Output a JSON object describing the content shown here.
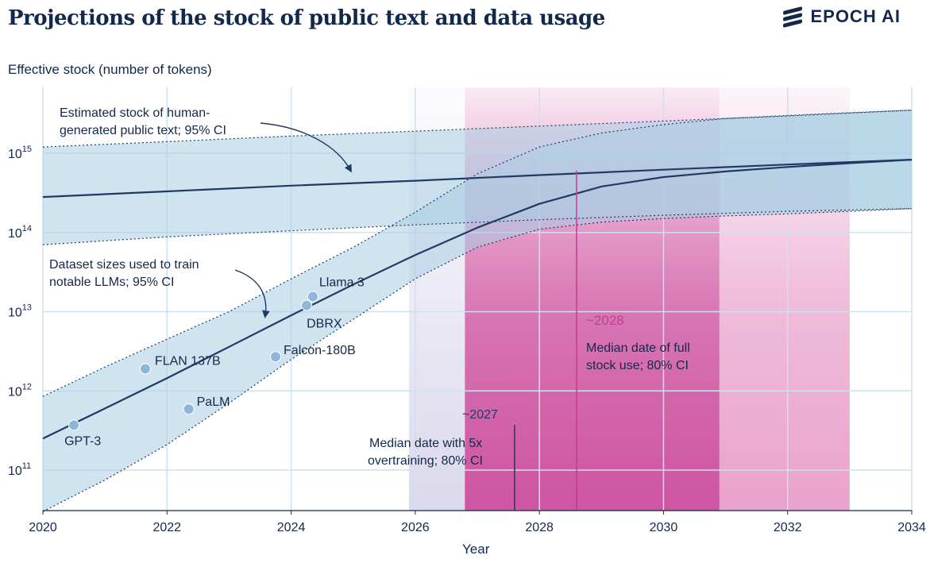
{
  "page": {
    "title": "Projections of the stock of public text and data usage",
    "brand": "EPOCH AI"
  },
  "chart_data": {
    "type": "line",
    "title": "Projections of the stock of public text and data usage",
    "xlabel": "Year",
    "ylabel": "Effective stock (number of tokens)",
    "xlim": [
      2020,
      2034
    ],
    "ylim": [
      30000000000.0,
      8000000000000000.0
    ],
    "yscale": "log",
    "grid": true,
    "x_ticks": [
      "2020",
      "2022",
      "2024",
      "2026",
      "2028",
      "2030",
      "2032",
      "2034"
    ],
    "y_ticks": [
      {
        "base": "10",
        "exp": "11"
      },
      {
        "base": "10",
        "exp": "12"
      },
      {
        "base": "10",
        "exp": "13"
      },
      {
        "base": "10",
        "exp": "14"
      },
      {
        "base": "10",
        "exp": "15"
      }
    ],
    "series": [
      {
        "key": "stock",
        "color": "#1f3b63",
        "band_color": "#a9cde3",
        "x": [
          2020,
          2022,
          2024,
          2026,
          2028,
          2030,
          2032,
          2034
        ],
        "y": [
          280000000000000.0,
          330000000000000.0,
          390000000000000.0,
          450000000000000.0,
          530000000000000.0,
          620000000000000.0,
          720000000000000.0,
          830000000000000.0
        ],
        "lower": [
          70000000000000.0,
          88000000000000.0,
          105000000000000.0,
          125000000000000.0,
          145000000000000.0,
          165000000000000.0,
          185000000000000.0,
          200000000000000.0
        ],
        "upper": [
          1200000000000000.0,
          1400000000000000.0,
          1650000000000000.0,
          1900000000000000.0,
          2200000000000000.0,
          2550000000000000.0,
          2950000000000000.0,
          3500000000000000.0
        ]
      },
      {
        "key": "usage",
        "color": "#1f3b63",
        "band_color": "#a9cde3",
        "x": [
          2020,
          2021,
          2022,
          2023,
          2024,
          2025,
          2026,
          2027,
          2028,
          2029,
          2030,
          2031,
          2032,
          2033,
          2034
        ],
        "y": [
          250000000000.0,
          600000000000.0,
          1450000000000.0,
          3600000000000.0,
          9000000000000.0,
          22000000000000.0,
          52000000000000.0,
          115000000000000.0,
          230000000000000.0,
          380000000000000.0,
          500000000000000.0,
          590000000000000.0,
          670000000000000.0,
          750000000000000.0,
          830000000000000.0
        ],
        "lower": [
          30000000000.0,
          75000000000.0,
          210000000000.0,
          700000000000.0,
          2500000000000.0,
          8000000000000.0,
          26000000000000.0,
          65000000000000.0,
          110000000000000.0,
          135000000000000.0,
          150000000000000.0,
          162000000000000.0,
          172000000000000.0,
          185000000000000.0,
          200000000000000.0
        ],
        "upper": [
          850000000000.0,
          2000000000000.0,
          4500000000000.0,
          10000000000000.0,
          26000000000000.0,
          65000000000000.0,
          180000000000000.0,
          550000000000000.0,
          1200000000000000.0,
          1800000000000000.0,
          2300000000000000.0,
          2750000000000000.0,
          3000000000000000.0,
          3250000000000000.0,
          3500000000000000.0
        ]
      }
    ],
    "models": [
      {
        "name": "GPT-3",
        "x": 2020.5,
        "y": 370000000000.0
      },
      {
        "name": "FLAN 137B",
        "x": 2021.65,
        "y": 1900000000000.0
      },
      {
        "name": "PaLM",
        "x": 2022.35,
        "y": 590000000000.0
      },
      {
        "name": "Falcon-180B",
        "x": 2023.75,
        "y": 2700000000000.0
      },
      {
        "name": "DBRX",
        "x": 2024.25,
        "y": 12000000000000.0
      },
      {
        "name": "Llama 3",
        "x": 2024.35,
        "y": 15500000000000.0
      }
    ],
    "regions": [
      {
        "key": "overtraining",
        "median": 2027.6,
        "lo": 2025.9,
        "hi": 2030.9,
        "lo_inner": 2026.8,
        "color": "#c43b93",
        "median_label": "~2027"
      },
      {
        "key": "full",
        "median": 2028.6,
        "lo": 2026.8,
        "hi": 2033.0,
        "color": "#e07ab5",
        "median_label": "~2028"
      }
    ],
    "annotations": {
      "stock_lines": [
        "Estimated stock of human-",
        "generated public text; 95% CI"
      ],
      "usage_lines": [
        "Dataset sizes used to train",
        "notable LLMs; 95% CI"
      ],
      "overtraining_lines": [
        "Median date with 5x",
        "overtraining; 80% CI"
      ],
      "full_lines": [
        "Median date of full",
        "stock use; 80% CI"
      ]
    }
  }
}
